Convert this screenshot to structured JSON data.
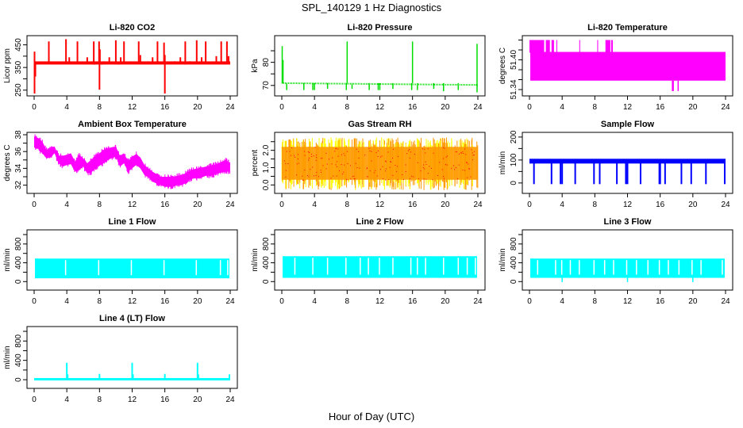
{
  "figure": {
    "title": "SPL_140129  1 Hz Diagnostics",
    "xlabel": "Hour of Day (UTC)"
  },
  "chart_data": [
    {
      "id": "co2",
      "type": "line",
      "title": "Li-820 CO2",
      "xlabel": "",
      "ylabel": "Licor ppm",
      "color": "#ff0000",
      "xlim": [
        0,
        24
      ],
      "ylim": [
        235,
        480
      ],
      "xticks": [
        0,
        4,
        8,
        12,
        16,
        20,
        24
      ],
      "yticks": [
        250,
        300,
        350,
        400,
        450
      ],
      "ytick_labels": [
        "250",
        "",
        "350",
        "",
        "450"
      ],
      "baseline": 370,
      "noise": 4,
      "spikes_up": [
        [
          0.05,
          420
        ],
        [
          1.8,
          465
        ],
        [
          3.9,
          475
        ],
        [
          4.3,
          395
        ],
        [
          5.3,
          465
        ],
        [
          6.5,
          395
        ],
        [
          7.3,
          465
        ],
        [
          7.95,
          465
        ],
        [
          8.05,
          430
        ],
        [
          9.2,
          395
        ],
        [
          10.0,
          470
        ],
        [
          10.6,
          395
        ],
        [
          11.0,
          465
        ],
        [
          12.8,
          465
        ],
        [
          13.0,
          405
        ],
        [
          14.5,
          395
        ],
        [
          15.1,
          465
        ],
        [
          15.9,
          460
        ],
        [
          16.0,
          405
        ],
        [
          17.9,
          395
        ],
        [
          18.5,
          465
        ],
        [
          19.9,
          470
        ],
        [
          20.5,
          395
        ],
        [
          21.0,
          465
        ],
        [
          22.3,
          400
        ],
        [
          22.9,
          465
        ],
        [
          23.6,
          465
        ],
        [
          23.8,
          400
        ]
      ],
      "spikes_down": [
        [
          0.05,
          235
        ],
        [
          0.15,
          310
        ],
        [
          8.0,
          252
        ],
        [
          16.0,
          235
        ]
      ]
    },
    {
      "id": "pressure",
      "type": "line",
      "title": "Li-820 Pressure",
      "xlabel": "",
      "ylabel": "kPa",
      "color": "#00dd00",
      "xlim": [
        0,
        24
      ],
      "ylim": [
        66.5,
        90.5
      ],
      "xticks": [
        0,
        4,
        8,
        12,
        16,
        20,
        24
      ],
      "yticks": [
        70,
        75,
        80,
        85
      ],
      "ytick_labels": [
        "70",
        "",
        "80",
        ""
      ],
      "baseline": 71,
      "baseline_end": 70.2,
      "spikes_up": [
        [
          0.05,
          87
        ],
        [
          0.15,
          81
        ],
        [
          8.0,
          89
        ],
        [
          16.0,
          89
        ],
        [
          23.9,
          88
        ]
      ],
      "spikes_down": [
        [
          0.6,
          68
        ],
        [
          2.7,
          68
        ],
        [
          3.8,
          68
        ],
        [
          4.0,
          68
        ],
        [
          5.6,
          68.5
        ],
        [
          7.9,
          68
        ],
        [
          8.6,
          68.5
        ],
        [
          10.7,
          68
        ],
        [
          11.8,
          68
        ],
        [
          12.0,
          68
        ],
        [
          13.6,
          68.5
        ],
        [
          15.9,
          68
        ],
        [
          16.6,
          68
        ],
        [
          18.6,
          68.5
        ],
        [
          19.8,
          67.5
        ],
        [
          21.6,
          68
        ],
        [
          23.9,
          67
        ]
      ]
    },
    {
      "id": "licor_temp",
      "type": "area",
      "title": "Li-820 Temperature",
      "xlabel": "",
      "ylabel": "degrees C",
      "color": "#ff00ff",
      "xlim": [
        0,
        24
      ],
      "ylim": [
        51.332,
        51.444
      ],
      "xticks": [
        0,
        4,
        8,
        12,
        16,
        20,
        24
      ],
      "yticks": [
        51.34,
        51.36,
        51.38,
        51.4,
        51.42,
        51.44
      ],
      "ytick_labels": [
        "51.34",
        "",
        "",
        "51.40",
        "",
        ""
      ],
      "band_low": 51.358,
      "band_high": 51.416,
      "top_bursts": [
        [
          0.0,
          1.8
        ],
        [
          2.0,
          2.5
        ],
        [
          2.7,
          3.0
        ],
        [
          3.3,
          3.4
        ],
        [
          6.1,
          6.2
        ],
        [
          8.3,
          8.4
        ],
        [
          9.3,
          9.9
        ],
        [
          10.0,
          10.2
        ]
      ],
      "top_value": 51.44,
      "dips": [
        [
          17.5,
          51.337
        ],
        [
          17.6,
          51.337
        ],
        [
          18.2,
          51.337
        ]
      ]
    },
    {
      "id": "ambient_temp",
      "type": "area",
      "title": "Ambient Box Temperature",
      "xlabel": "",
      "ylabel": "degrees C",
      "color": "#ff00ff",
      "xlim": [
        0,
        24
      ],
      "ylim": [
        31.3,
        38.0
      ],
      "xticks": [
        0,
        4,
        8,
        12,
        16,
        20,
        24
      ],
      "yticks": [
        32,
        33,
        34,
        35,
        36,
        37,
        38
      ],
      "ytick_labels": [
        "32",
        "",
        "34",
        "",
        "36",
        "",
        "38"
      ],
      "x": [
        0,
        0.5,
        1.0,
        1.5,
        2.0,
        2.5,
        3.0,
        3.5,
        4.0,
        4.5,
        5.0,
        5.5,
        6.0,
        6.5,
        7.0,
        7.5,
        8.0,
        8.5,
        9.0,
        9.5,
        10.0,
        10.5,
        11.0,
        11.5,
        12.0,
        12.5,
        13.0,
        13.5,
        14.0,
        14.5,
        15.0,
        15.5,
        16.0,
        16.5,
        17.0,
        17.5,
        18.0,
        18.5,
        19.0,
        19.5,
        20.0,
        20.5,
        21.0,
        21.5,
        22.0,
        22.5,
        23.0,
        23.5,
        24.0
      ],
      "low": [
        36.5,
        36.3,
        35.8,
        35.2,
        35.3,
        35.8,
        34.6,
        34.2,
        34.4,
        34.5,
        33.6,
        33.8,
        34.2,
        33.4,
        33.5,
        34.0,
        34.3,
        34.6,
        35.0,
        35.2,
        35.4,
        34.2,
        34.6,
        33.6,
        34.0,
        34.4,
        34.0,
        33.2,
        32.9,
        32.4,
        32.2,
        32.0,
        31.8,
        31.8,
        31.8,
        32.0,
        32.0,
        32.2,
        32.6,
        32.8,
        32.8,
        32.9,
        33.1,
        33.1,
        33.2,
        33.4,
        33.5,
        33.6,
        33.6
      ],
      "high": [
        37.8,
        37.6,
        37.2,
        36.2,
        36.5,
        36.6,
        35.5,
        35.5,
        35.6,
        35.8,
        34.8,
        35.6,
        35.2,
        34.6,
        35.0,
        35.5,
        35.8,
        36.2,
        36.4,
        36.5,
        36.6,
        35.5,
        35.8,
        34.8,
        35.4,
        35.7,
        35.3,
        34.4,
        34.0,
        33.6,
        33.3,
        33.0,
        33.0,
        33.0,
        33.0,
        33.1,
        33.2,
        33.4,
        33.7,
        33.9,
        34.0,
        34.1,
        34.2,
        34.3,
        34.4,
        34.6,
        34.8,
        35.0,
        34.6
      ]
    },
    {
      "id": "rh",
      "type": "area",
      "title": "Gas Stream RH",
      "xlabel": "",
      "ylabel": "percent",
      "color": "#ff9900",
      "color2": "#ffff00",
      "color3": "#ff0000",
      "xlim": [
        0,
        24
      ],
      "ylim": [
        -0.35,
        2.9
      ],
      "xticks": [
        0,
        4,
        8,
        12,
        16,
        20,
        24
      ],
      "yticks": [
        0.0,
        0.5,
        1.0,
        1.5,
        2.0,
        2.5
      ],
      "ytick_labels": [
        "0.0",
        "",
        "1.0",
        "",
        "2.0",
        ""
      ],
      "band_low": 0.3,
      "band_high": 2.2,
      "max": 2.75,
      "min": -0.3
    },
    {
      "id": "sample_flow",
      "type": "line",
      "title": "Sample Flow",
      "xlabel": "",
      "ylabel": "ml/min",
      "color": "#0000ff",
      "xlim": [
        0,
        24
      ],
      "ylim": [
        -35,
        210
      ],
      "xticks": [
        0,
        4,
        8,
        12,
        16,
        20,
        24
      ],
      "yticks": [
        0,
        50,
        100,
        150,
        200
      ],
      "ytick_labels": [
        "0",
        "",
        "100",
        "",
        "200"
      ],
      "baseline": 95,
      "dropouts": [
        0.55,
        2.7,
        3.8,
        4.0,
        5.6,
        7.9,
        8.6,
        10.7,
        11.8,
        12.0,
        13.6,
        15.9,
        16.0,
        16.6,
        18.6,
        19.8,
        21.6,
        23.9
      ]
    },
    {
      "id": "line1_flow",
      "type": "area",
      "title": "Line 1 Flow",
      "xlabel": "",
      "ylabel": "ml/min",
      "color": "#00ffff",
      "xlim": [
        0,
        24
      ],
      "ylim": [
        -130,
        1050
      ],
      "xticks": [
        0,
        4,
        8,
        12,
        16,
        20,
        24
      ],
      "yticks": [
        0,
        200,
        400,
        600,
        800,
        1000
      ],
      "ytick_labels": [
        "0",
        "",
        "400",
        "",
        "800",
        ""
      ],
      "band_low": 70,
      "band_high": 490,
      "gaps": [
        3.85,
        7.9,
        11.9,
        15.9,
        19.85,
        22.8,
        23.7
      ]
    },
    {
      "id": "line2_flow",
      "type": "area",
      "title": "Line 2 Flow",
      "xlabel": "",
      "ylabel": "ml/min",
      "color": "#00ffff",
      "xlim": [
        0,
        24
      ],
      "ylim": [
        -130,
        1050
      ],
      "xticks": [
        0,
        4,
        8,
        12,
        16,
        20,
        24
      ],
      "yticks": [
        0,
        200,
        400,
        600,
        800,
        1000
      ],
      "ytick_labels": [
        "0",
        "",
        "400",
        "",
        "800",
        ""
      ],
      "band_low": 80,
      "band_high": 540,
      "gaps": [
        1.6,
        3.8,
        5.6,
        7.85,
        9.6,
        10.6,
        11.95,
        13.6,
        15.8,
        16.6,
        17.6,
        19.8,
        21.6,
        22.7,
        23.7
      ]
    },
    {
      "id": "line3_flow",
      "type": "area",
      "title": "Line 3 Flow",
      "xlabel": "",
      "ylabel": "ml/min",
      "color": "#00ffff",
      "xlim": [
        0,
        24
      ],
      "ylim": [
        -130,
        1050
      ],
      "xticks": [
        0,
        4,
        8,
        12,
        16,
        20,
        24
      ],
      "yticks": [
        0,
        200,
        400,
        600,
        800,
        1000
      ],
      "ytick_labels": [
        "0",
        "",
        "400",
        "",
        "800",
        ""
      ],
      "band_low": 80,
      "band_high": 490,
      "gaps": [
        1.0,
        3.2,
        3.95,
        5.0,
        6.1,
        7.9,
        9.2,
        10.3,
        11.9,
        13.1,
        14.5,
        15.9,
        17.0,
        18.3,
        19.9,
        21.0,
        23.6
      ],
      "dips": [
        [
          4.0,
          -10
        ],
        [
          12.0,
          -10
        ],
        [
          20.0,
          -10
        ]
      ]
    },
    {
      "id": "line4_flow",
      "type": "line",
      "title": "Line 4 (LT) Flow",
      "xlabel": "",
      "ylabel": "ml/min",
      "color": "#00ffff",
      "xlim": [
        0,
        24
      ],
      "ylim": [
        -130,
        1050
      ],
      "xticks": [
        0,
        4,
        8,
        12,
        16,
        20,
        24
      ],
      "yticks": [
        0,
        200,
        400,
        600,
        800,
        1000
      ],
      "ytick_labels": [
        "0",
        "",
        "400",
        "",
        "800",
        ""
      ],
      "baseline": 10,
      "spikes_up": [
        [
          4.0,
          350
        ],
        [
          4.1,
          110
        ],
        [
          8.0,
          120
        ],
        [
          12.0,
          350
        ],
        [
          12.1,
          110
        ],
        [
          16.0,
          120
        ],
        [
          20.0,
          350
        ],
        [
          20.1,
          110
        ],
        [
          23.9,
          110
        ]
      ]
    }
  ]
}
